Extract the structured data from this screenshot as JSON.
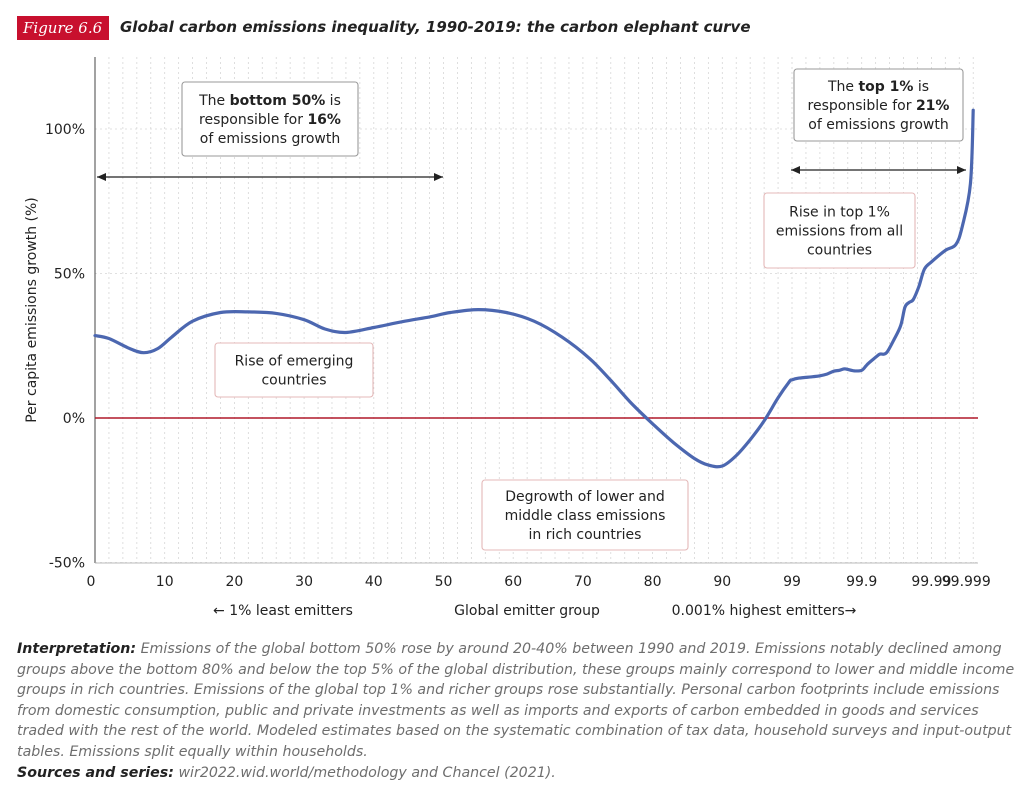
{
  "header": {
    "figure_label": "Figure 6.6",
    "title": "Global carbon emissions inequality, 1990-2019: the carbon elephant curve"
  },
  "chart_data": {
    "type": "line",
    "title": "Global carbon emissions inequality, 1990-2019: the carbon elephant curve",
    "ylabel": "Per capita emissions growth (%)",
    "xlabel": "Global emitter group",
    "ylim": [
      -50,
      120
    ],
    "x_ticks": [
      "0",
      "10",
      "20",
      "30",
      "40",
      "50",
      "60",
      "70",
      "80",
      "90",
      "99",
      "99.9",
      "99.99",
      "99.999"
    ],
    "y_ticks": [
      {
        "value": 100,
        "label": "100%"
      },
      {
        "value": 50,
        "label": "50%"
      },
      {
        "value": 0,
        "label": "0%"
      },
      {
        "value": -50,
        "label": "-50%"
      }
    ],
    "x_sub_labels": {
      "left": "← 1% least emitters",
      "center": "Global emitter group",
      "right": "0.001% highest emitters→"
    },
    "line_color": "#4c67b0",
    "zero_line_color": "#b0182a",
    "grid": true,
    "series": [
      {
        "x_position": [
          0,
          2,
          5,
          7,
          9,
          11,
          14,
          18,
          22,
          26,
          30,
          33,
          36,
          40,
          44,
          48,
          51,
          55,
          59,
          63,
          67,
          71,
          74,
          77,
          80,
          83,
          86,
          88,
          90,
          92,
          94,
          96,
          98,
          99.6,
          100,
          101,
          103,
          104,
          105,
          106,
          106.8,
          107.5,
          108,
          109,
          110,
          110.6,
          111,
          112,
          112.6,
          113.2,
          113.7,
          114.6,
          115.6,
          116.2,
          116.8,
          117.4,
          118.2,
          119,
          120,
          122,
          123.5,
          124.4,
          125.6,
          126
        ],
        "y": [
          28.5,
          27.5,
          24,
          22.6,
          24,
          28,
          33.5,
          36.5,
          36.7,
          36.2,
          34,
          30.8,
          29.6,
          31.3,
          33.3,
          35,
          36.5,
          37.5,
          36.5,
          33.5,
          28,
          20.5,
          13,
          5,
          -2,
          -8.5,
          -14,
          -16.3,
          -16.6,
          -13,
          -7.5,
          -1,
          7,
          12.5,
          13.2,
          13.8,
          14.3,
          14.6,
          15.2,
          16.2,
          16.5,
          17,
          16.8,
          16.3,
          16.5,
          18,
          19,
          21,
          22.1,
          22.1,
          23,
          27,
          32,
          38.3,
          40,
          41,
          45.5,
          51.5,
          54,
          58,
          60,
          66,
          81,
          106.5
        ]
      }
    ],
    "annotations": [
      {
        "id": "bottom50",
        "lines": [
          "The bottom 50% is",
          "responsible for 16%",
          "of emissions growth"
        ]
      },
      {
        "id": "top1",
        "lines": [
          "The top 1% is",
          "responsible for 21%",
          "of emissions growth"
        ]
      },
      {
        "id": "rise_top1",
        "lines": [
          "Rise in top 1%",
          "emissions from all",
          "countries"
        ]
      },
      {
        "id": "emerging",
        "lines": [
          "Rise of emerging",
          "countries"
        ]
      },
      {
        "id": "degrowth",
        "lines": [
          "Degrowth of lower and",
          "middle class emissions",
          "in rich countries"
        ]
      }
    ]
  },
  "interpretation": {
    "label": "Interpretation:",
    "text": "Emissions of the global bottom 50% rose by around 20-40% between 1990 and 2019. Emissions notably declined among groups above the bottom 80% and below the top 5% of the global distribution, these groups mainly correspond to lower and middle income groups in rich countries. Emissions of the global top 1% and richer groups rose substantially. Personal carbon footprints include emissions from domestic consumption, public and private investments as well as imports and exports of carbon embedded in goods and services traded with the rest of the world. Modeled estimates based on the systematic combination of tax data, household surveys and input-output tables. Emissions split equally within households."
  },
  "sources": {
    "label": "Sources and series:",
    "text": "wir2022.wid.world/methodology and Chancel (2021)."
  }
}
